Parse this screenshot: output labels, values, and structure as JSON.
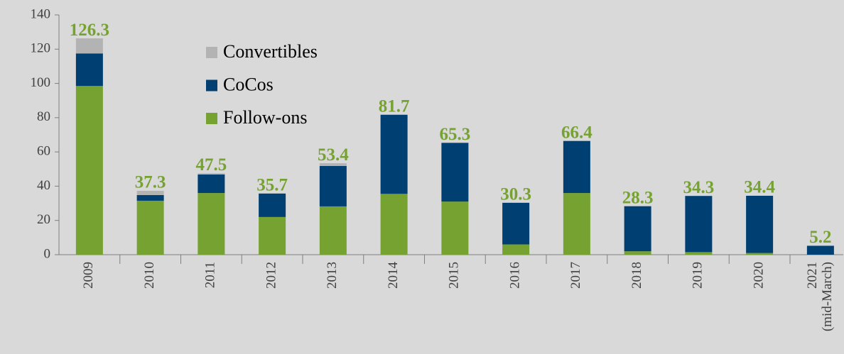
{
  "chart_data": {
    "type": "stacked_bar",
    "categories": [
      "2009",
      "2010",
      "2011",
      "2012",
      "2013",
      "2014",
      "2015",
      "2016",
      "2017",
      "2018",
      "2019",
      "2020",
      "2021 (mid-March)"
    ],
    "series": [
      {
        "name": "Follow-ons",
        "color": "#76a232",
        "values": [
          98.5,
          31.5,
          36,
          22,
          28.2,
          35.5,
          31,
          6,
          36,
          2,
          1.5,
          1,
          0
        ]
      },
      {
        "name": "CoCos",
        "color": "#003f72",
        "values": [
          19,
          3.3,
          10.8,
          13.7,
          23.6,
          46.2,
          34.3,
          24.3,
          30.4,
          26.3,
          32.8,
          33.4,
          5.2
        ]
      },
      {
        "name": "Convertibles",
        "color": "#b3b3b3",
        "values": [
          8.8,
          2.5,
          0.7,
          0,
          1.6,
          0,
          0,
          0,
          0,
          0,
          0,
          0,
          0
        ]
      }
    ],
    "totals": [
      126.3,
      37.3,
      47.5,
      35.7,
      53.4,
      81.7,
      65.3,
      30.3,
      66.4,
      28.3,
      34.3,
      34.4,
      5.2
    ],
    "ylim": [
      0,
      140
    ],
    "yticks": [
      0,
      20,
      40,
      60,
      80,
      100,
      120,
      140
    ],
    "grid": false
  }
}
